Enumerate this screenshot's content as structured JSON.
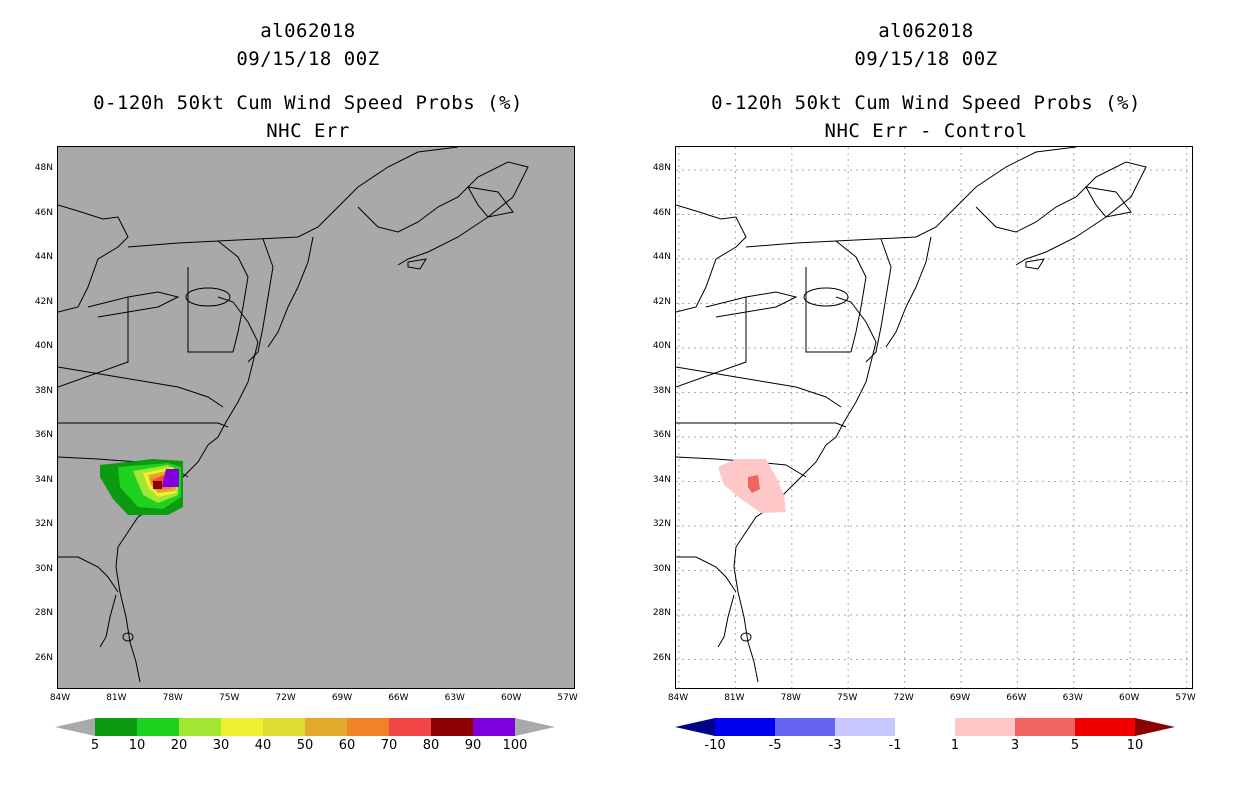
{
  "panels": [
    {
      "id": "left",
      "storm_id": "al062018",
      "datetime": "09/15/18 00Z",
      "product": "0-120h 50kt Cum Wind Speed Probs (%)",
      "subtitle": "NHC Err",
      "background": "#a9a9a9",
      "colorbar": {
        "labels": [
          "5",
          "10",
          "20",
          "30",
          "40",
          "50",
          "60",
          "70",
          "80",
          "90",
          "100"
        ],
        "colors": [
          "#a9a9a9",
          "#0b9a10",
          "#1fd21f",
          "#a0e632",
          "#f0f032",
          "#dcdc32",
          "#e1aa2d",
          "#f08228",
          "#f04646",
          "#8b0000",
          "#7f00dc",
          "#a9a9a9"
        ]
      }
    },
    {
      "id": "right",
      "storm_id": "al062018",
      "datetime": "09/15/18 00Z",
      "product": "0-120h 50kt Cum Wind Speed Probs (%)",
      "subtitle": "NHC Err - Control",
      "background": "#ffffff",
      "colorbar": {
        "labels": [
          "-10",
          "-5",
          "-3",
          "-1",
          "1",
          "3",
          "5",
          "10"
        ],
        "colors": [
          "#00008b",
          "#0000f0",
          "#6464f0",
          "#c8c8ff",
          "#ffffff",
          "#ffc8c8",
          "#f06464",
          "#f00000",
          "#8b0000"
        ]
      }
    }
  ],
  "lat_labels": [
    "48N",
    "46N",
    "44N",
    "42N",
    "40N",
    "38N",
    "36N",
    "34N",
    "32N",
    "30N",
    "28N",
    "26N"
  ],
  "lon_labels": [
    "84W",
    "81W",
    "78W",
    "75W",
    "72W",
    "69W",
    "66W",
    "63W",
    "60W",
    "57W"
  ]
}
